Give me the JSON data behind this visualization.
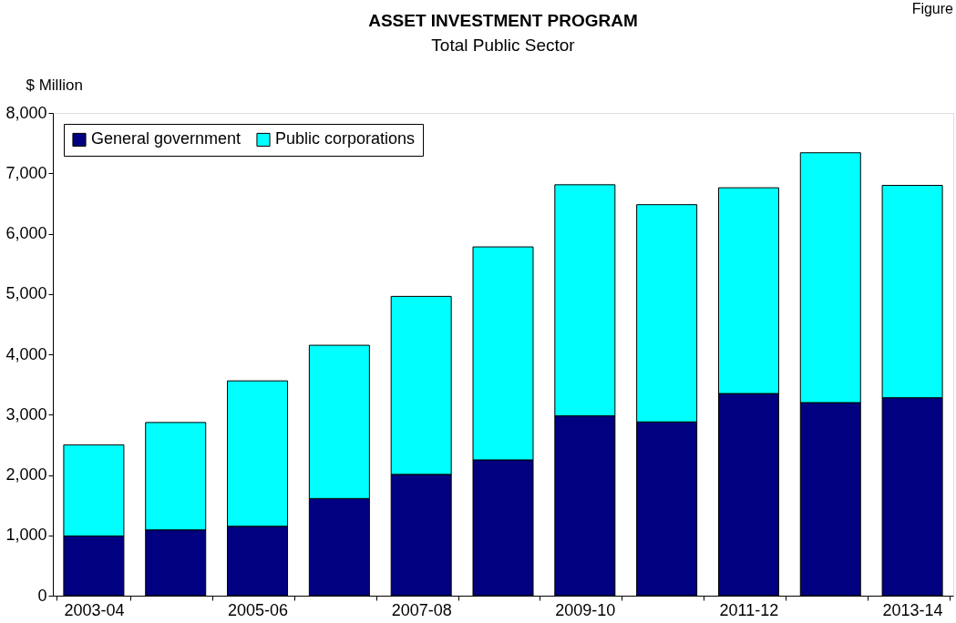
{
  "chart_data": {
    "type": "bar",
    "title": "ASSET INVESTMENT PROGRAM",
    "subtitle": "Total Public Sector",
    "ylabel": "$ Million",
    "annotations": [
      "Figure"
    ],
    "categories": [
      "2003-04",
      null,
      "2005-06",
      null,
      "2007-08",
      null,
      "2009-10",
      null,
      "2011-12",
      null,
      "2013-14"
    ],
    "series": [
      {
        "name": "General government",
        "color": "#000080",
        "values": [
          990,
          1090,
          1150,
          1610,
          2010,
          2250,
          2980,
          2880,
          3350,
          3200,
          3280
        ]
      },
      {
        "name": "Public corporations",
        "color": "#00ffff",
        "values": [
          1510,
          1780,
          2410,
          2540,
          2950,
          3530,
          3830,
          3600,
          3410,
          4140,
          3520
        ]
      }
    ],
    "stacked": true,
    "ylim": [
      0,
      8000
    ],
    "yticks": [
      0,
      {
        "value": 1000,
        "label": "1,000"
      },
      {
        "value": 2000,
        "label": "2,000"
      },
      {
        "value": 3000,
        "label": "3,000"
      },
      {
        "value": 4000,
        "label": "4,000"
      },
      {
        "value": 5000,
        "label": "5,000"
      },
      {
        "value": 6000,
        "label": "6,000"
      },
      {
        "value": 7000,
        "label": "7,000"
      },
      {
        "value": 8000,
        "label": "8,000"
      }
    ],
    "grid": false,
    "legend": "top left"
  }
}
